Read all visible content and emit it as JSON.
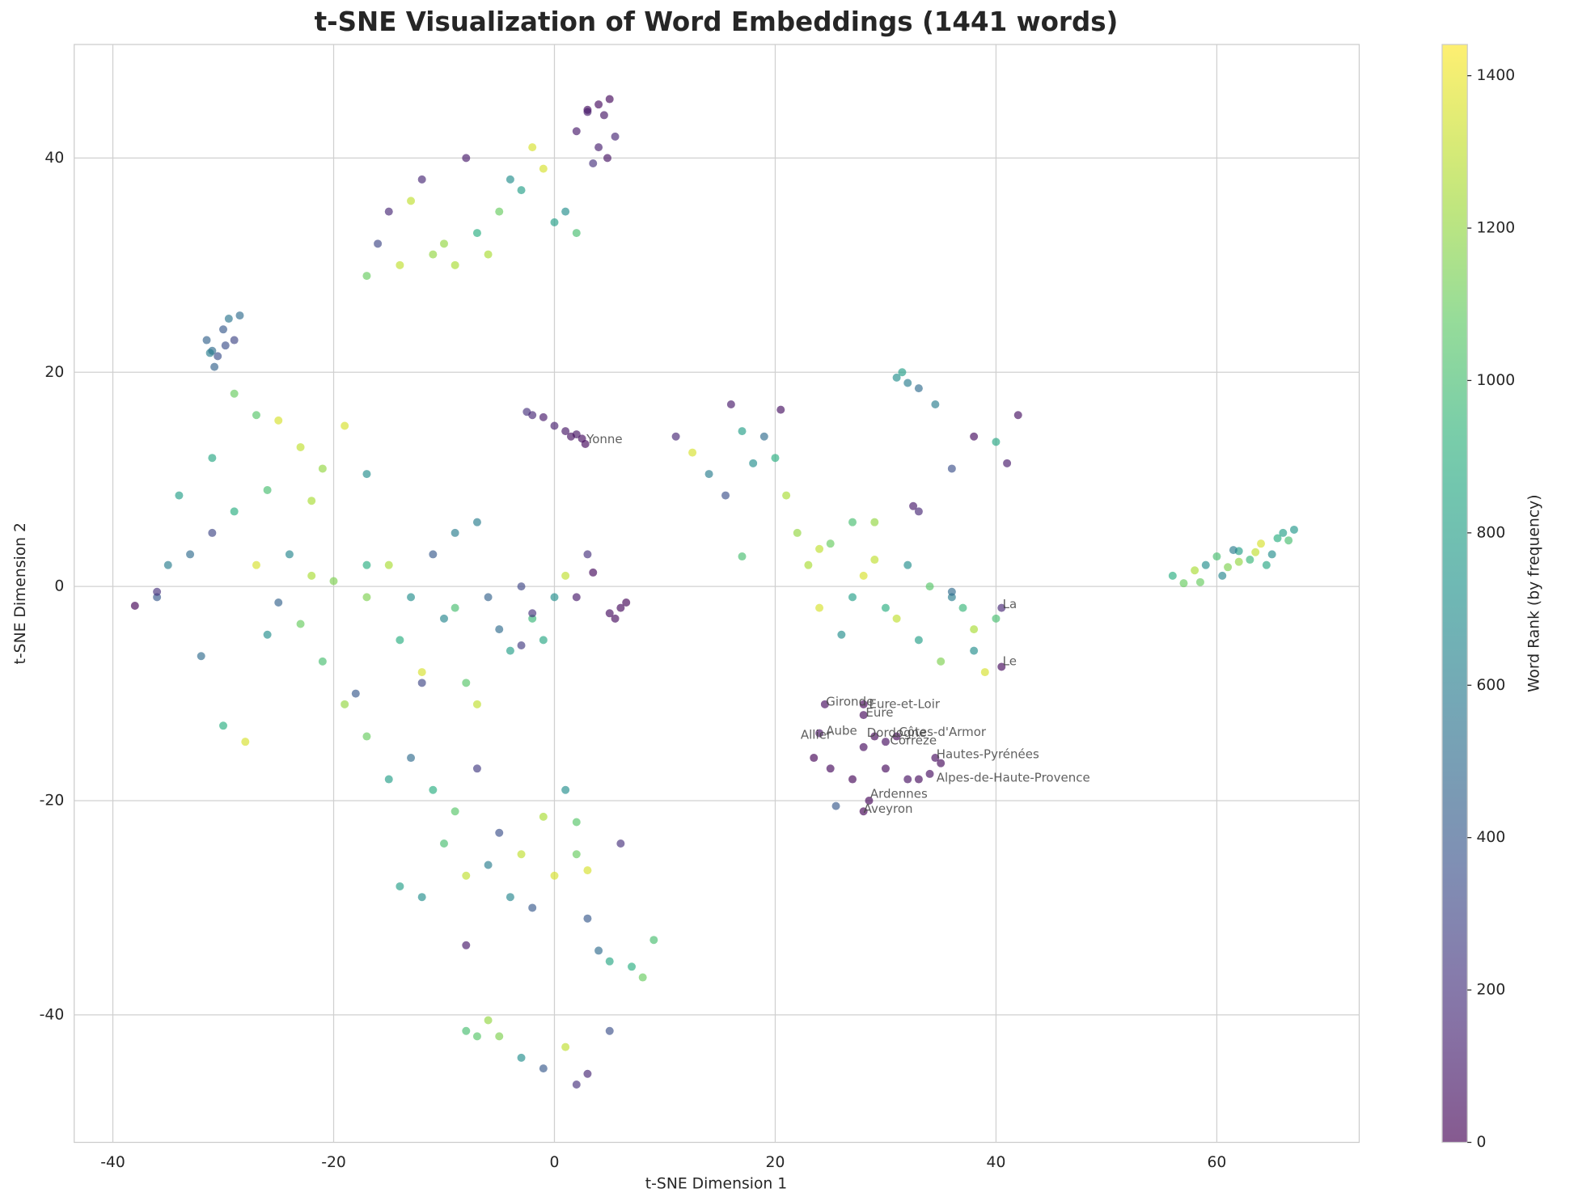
{
  "chart_data": {
    "type": "scatter",
    "title": "t-SNE Visualization of Word Embeddings (1441 words)",
    "x_label": "t-SNE Dimension 1",
    "y_label": "t-SNE Dimension 2",
    "colorbar_label": "Word Rank (by frequency)",
    "colormap": "viridis",
    "grid": true,
    "xlim": [
      -43.5,
      72.9
    ],
    "ylim": [
      -51.9,
      50.6
    ],
    "xticks": [
      -40,
      -20,
      0,
      20,
      40,
      60
    ],
    "yticks": [
      -40,
      -20,
      0,
      20,
      40
    ],
    "clim": [
      0,
      1441
    ],
    "cticks": [
      0,
      200,
      400,
      600,
      800,
      1000,
      1200,
      1400
    ],
    "x": [
      3,
      4,
      4.5,
      5,
      5.5,
      4,
      3.5,
      2,
      4.8,
      3,
      -15,
      -13,
      -11,
      -9,
      -7,
      -5,
      -3,
      -1,
      1,
      2,
      -17,
      -14,
      -12,
      -8,
      -6,
      -4,
      -2,
      0,
      -10,
      -16,
      -31.5,
      -31,
      -30.5,
      -30,
      -29.5,
      -29,
      -28.5,
      -30.8,
      -29.8,
      -31.2,
      -29,
      -27,
      -25,
      -23,
      -21,
      -19,
      -31,
      -26,
      -22,
      -17,
      -38,
      -36,
      -35,
      -33,
      -31,
      -29,
      -27,
      -25,
      -23,
      -21,
      -34,
      -32,
      -30,
      -28,
      -26,
      -24,
      -22,
      -20,
      -18,
      -36,
      -15,
      -13,
      -11,
      -9,
      -7,
      -5,
      -3,
      -1,
      1,
      3,
      -14,
      -12,
      -10,
      -8,
      -6,
      -4,
      -2,
      0,
      2,
      5,
      6,
      5.5,
      6.5,
      3.5,
      -2,
      -3,
      -7,
      -9,
      -12,
      -17,
      -17,
      -15,
      -13,
      -11,
      -9,
      -7,
      -5,
      -3,
      -1,
      -19,
      -14,
      -12,
      -10,
      -8,
      -6,
      -4,
      -2,
      0,
      2,
      -8,
      1,
      2,
      3,
      4,
      5,
      6,
      7,
      8,
      9,
      3,
      -8,
      -7,
      -6,
      -5,
      -3,
      -1,
      1,
      2,
      3,
      5,
      -2.5,
      -2,
      -1,
      0,
      1,
      1.5,
      2,
      2.5,
      2.8,
      -17,
      11,
      12.5,
      14,
      15.5,
      16,
      17,
      18,
      19,
      20.5,
      20,
      31,
      31.5,
      32,
      33,
      36,
      38,
      40,
      41,
      42,
      34.5,
      22,
      23,
      24,
      25,
      26,
      27,
      28,
      29,
      30,
      21,
      31,
      32,
      33,
      34,
      35,
      36,
      37,
      38,
      39,
      40,
      40.5,
      40.5,
      32.5,
      33,
      36,
      29,
      27,
      24,
      17,
      38,
      56,
      57,
      58,
      59,
      60,
      61,
      62,
      63,
      64,
      65,
      66,
      67,
      60.5,
      62,
      63.5,
      65.5,
      58.5,
      61.5,
      64.5,
      66.5,
      24.5,
      28,
      28,
      29,
      30,
      31,
      24,
      23.5,
      25,
      34.5,
      27,
      28,
      30,
      32,
      34,
      35,
      33,
      28.5,
      28,
      25.5
    ],
    "y": [
      44.5,
      45,
      44,
      45.5,
      42,
      41,
      39.5,
      42.5,
      40,
      44.3,
      35,
      36,
      31,
      30,
      33,
      35,
      37,
      39,
      35,
      33,
      29,
      30,
      38,
      40,
      31,
      38,
      41,
      34,
      32,
      32,
      23,
      22,
      21.5,
      24,
      25,
      23,
      25.3,
      20.5,
      22.5,
      21.8,
      18,
      16,
      15.5,
      13,
      11,
      15,
      12,
      9,
      8,
      10.5,
      -1.8,
      -1,
      2,
      3,
      5,
      7,
      2,
      -1.5,
      -3.5,
      -7,
      8.5,
      -6.5,
      -13,
      -14.5,
      -4.5,
      3,
      1,
      0.5,
      -10,
      -0.5,
      2,
      -1,
      3,
      -2,
      6,
      -4,
      0,
      -5,
      1,
      3,
      -5,
      -8,
      -3,
      -9,
      -1,
      -6,
      -3,
      -1,
      -1,
      -2.5,
      -2,
      -3,
      -1.5,
      1.3,
      -2.5,
      -5.5,
      -11,
      5,
      -9,
      -1,
      -14,
      -18,
      -16,
      -19,
      -21,
      -17,
      -23,
      -25,
      -21.5,
      -11,
      -28,
      -29,
      -24,
      -27,
      -26,
      -29,
      -30,
      -27,
      -25,
      -33.5,
      -19,
      -22,
      -31,
      -34,
      -35,
      -24,
      -35.5,
      -36.5,
      -33,
      -26.5,
      -41.5,
      -42,
      -40.5,
      -42,
      -44,
      -45,
      -43,
      -46.5,
      -45.5,
      -41.5,
      16.3,
      16,
      15.8,
      15,
      14.5,
      14,
      14.2,
      13.8,
      13.3,
      2,
      14,
      12.5,
      10.5,
      8.5,
      17,
      14.5,
      11.5,
      14,
      16.5,
      12,
      19.5,
      20,
      19,
      18.5,
      11,
      14,
      13.5,
      11.5,
      16,
      17,
      5,
      2,
      3.5,
      4,
      -4.5,
      -1,
      1,
      6,
      -2,
      8.5,
      -3,
      2,
      -5,
      0,
      -7,
      -1,
      -2,
      -4,
      -8,
      -3,
      -2,
      -7.5,
      7.5,
      7,
      -0.5,
      2.5,
      6,
      -2,
      2.8,
      -6,
      1,
      0.3,
      1.5,
      2,
      2.8,
      1.8,
      3.3,
      2.5,
      4,
      3,
      5,
      5.3,
      1,
      2.3,
      3.2,
      4.5,
      0.4,
      3.4,
      2,
      4.3,
      -11,
      -11,
      -12,
      -14,
      -14.5,
      -14,
      -13.7,
      -16,
      -17,
      -16,
      -18,
      -15,
      -17,
      -18,
      -17.5,
      -16.5,
      -18,
      -20,
      -21,
      -20.5
    ],
    "ranks": [
      60,
      40,
      80,
      30,
      150,
      120,
      200,
      100,
      70,
      110,
      150,
      1300,
      1200,
      1250,
      900,
      1100,
      800,
      1350,
      700,
      1000,
      1100,
      1300,
      150,
      100,
      1250,
      700,
      1350,
      800,
      1200,
      300,
      450,
      500,
      350,
      400,
      550,
      300,
      500,
      450,
      350,
      600,
      1100,
      1050,
      1350,
      1300,
      1200,
      1350,
      850,
      1000,
      1250,
      700,
      10,
      400,
      600,
      500,
      300,
      900,
      1350,
      450,
      1100,
      1000,
      800,
      500,
      900,
      1350,
      700,
      650,
      1250,
      1150,
      400,
      200,
      1250,
      700,
      400,
      1000,
      600,
      500,
      300,
      850,
      1300,
      200,
      900,
      1350,
      650,
      1050,
      450,
      800,
      950,
      700,
      100,
      50,
      30,
      40,
      20,
      30,
      200,
      250,
      1300,
      600,
      300,
      1150,
      1100,
      800,
      500,
      900,
      1050,
      250,
      350,
      1300,
      1250,
      1200,
      800,
      700,
      1000,
      1300,
      600,
      650,
      400,
      1350,
      1100,
      100,
      700,
      1050,
      400,
      500,
      850,
      200,
      900,
      1100,
      1000,
      1350,
      1000,
      1050,
      1200,
      1150,
      700,
      400,
      1300,
      200,
      150,
      350,
      200,
      150,
      100,
      120,
      80,
      60,
      70,
      50,
      30,
      900,
      150,
      1350,
      600,
      350,
      100,
      800,
      700,
      500,
      60,
      900,
      700,
      800,
      600,
      500,
      350,
      50,
      850,
      100,
      60,
      600,
      1200,
      1250,
      1300,
      1100,
      700,
      800,
      1350,
      1200,
      900,
      1250,
      1300,
      700,
      800,
      1050,
      1150,
      600,
      950,
      1250,
      1350,
      1000,
      150,
      30,
      100,
      150,
      500,
      1300,
      1000,
      1350,
      1000,
      700,
      900,
      1100,
      1250,
      700,
      1000,
      1150,
      800,
      950,
      1350,
      700,
      800,
      750,
      650,
      1200,
      1300,
      900,
      1100,
      600,
      850,
      1000,
      40,
      10,
      30,
      20,
      50,
      15,
      60,
      10,
      30,
      40,
      20,
      40,
      30,
      60,
      50,
      25,
      35,
      15,
      5,
      400
    ],
    "annotations": [
      {
        "text": "Yonne",
        "x": 2.9,
        "y": 13.7
      },
      {
        "text": "La",
        "x": 40.6,
        "y": -1.7
      },
      {
        "text": "Le",
        "x": 40.6,
        "y": -7.0
      },
      {
        "text": "Gironde",
        "x": 24.6,
        "y": -10.8
      },
      {
        "text": "Eure-et-Loir",
        "x": 28.5,
        "y": -11.0
      },
      {
        "text": "Eure",
        "x": 28.2,
        "y": -11.8
      },
      {
        "text": "Aube",
        "x": 24.6,
        "y": -13.5
      },
      {
        "text": "Allier",
        "x": 22.3,
        "y": -13.9
      },
      {
        "text": "Dordogne",
        "x": 28.3,
        "y": -13.7
      },
      {
        "text": "Côtes-d'Armor",
        "x": 31.2,
        "y": -13.6
      },
      {
        "text": "Corrèze",
        "x": 30.4,
        "y": -14.4
      },
      {
        "text": "Hautes-Pyrénées",
        "x": 34.6,
        "y": -15.7
      },
      {
        "text": "Alpes-de-Haute-Provence",
        "x": 34.6,
        "y": -17.9
      },
      {
        "text": "Ardennes",
        "x": 28.6,
        "y": -19.4
      },
      {
        "text": "Aveyron",
        "x": 28.0,
        "y": -20.8
      }
    ]
  }
}
